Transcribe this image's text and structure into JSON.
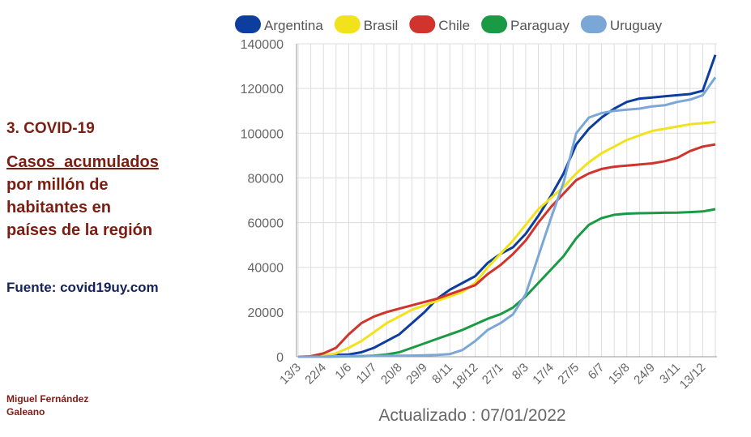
{
  "slide": {
    "section": "3. COVID-19",
    "title_lines": [
      "Casos  acumulados",
      "por millón de",
      "habitantes en",
      "países de la región"
    ],
    "source": "Fuente: covid19uy.com",
    "author": [
      "Miguel Fernández",
      "Galeano"
    ]
  },
  "chart_data": {
    "type": "line",
    "caption": "Actualizado : 07/01/2022",
    "categories": [
      "13/3",
      null,
      "22/4",
      null,
      "1/6",
      null,
      "11/7",
      null,
      "20/8",
      null,
      "29/9",
      null,
      "8/11",
      null,
      "18/12",
      null,
      "27/1",
      null,
      "8/3",
      null,
      "17/4",
      null,
      "27/5",
      null,
      "6/7",
      null,
      "15/8",
      null,
      "24/9",
      null,
      "3/11",
      null,
      "13/12",
      null
    ],
    "ylim": [
      0,
      140000
    ],
    "yticks": [
      0,
      20000,
      40000,
      60000,
      80000,
      100000,
      120000,
      140000
    ],
    "grid": true,
    "legend": "top",
    "series": [
      {
        "name": "Argentina",
        "color": "#0d3d9e",
        "values": [
          0,
          0,
          500,
          800,
          1000,
          2000,
          4000,
          7000,
          10000,
          15000,
          20000,
          26000,
          30000,
          33000,
          36000,
          42000,
          46000,
          49000,
          55000,
          63000,
          72000,
          82000,
          95000,
          102000,
          107000,
          111000,
          114000,
          115500,
          116000,
          116500,
          117000,
          117500,
          119000,
          135000
        ]
      },
      {
        "name": "Brasil",
        "color": "#f2e21b",
        "values": [
          0,
          0,
          500,
          1500,
          4000,
          7000,
          11000,
          15000,
          18000,
          21000,
          23000,
          25000,
          27000,
          29000,
          33000,
          40000,
          46000,
          52000,
          59000,
          66000,
          71000,
          76000,
          82000,
          87000,
          91000,
          94000,
          97000,
          99000,
          101000,
          102000,
          103000,
          104000,
          104500,
          105000
        ]
      },
      {
        "name": "Chile",
        "color": "#d0342c",
        "values": [
          0,
          200,
          1500,
          4000,
          10000,
          15000,
          18000,
          20000,
          21500,
          23000,
          24500,
          26000,
          28000,
          30000,
          32000,
          37000,
          41000,
          46000,
          52000,
          60000,
          67000,
          73000,
          79000,
          82000,
          84000,
          85000,
          85500,
          86000,
          86500,
          87500,
          89000,
          92000,
          94000,
          95000
        ]
      },
      {
        "name": "Paraguay",
        "color": "#1a9a45",
        "values": [
          0,
          0,
          0,
          100,
          200,
          300,
          500,
          1000,
          2000,
          4000,
          6000,
          8000,
          10000,
          12000,
          14500,
          17000,
          19000,
          22000,
          27000,
          33000,
          39000,
          45000,
          53000,
          59000,
          62000,
          63500,
          64000,
          64200,
          64300,
          64400,
          64500,
          64700,
          65000,
          66000
        ]
      },
      {
        "name": "Uruguay",
        "color": "#7ba7d7",
        "values": [
          0,
          0,
          0,
          200,
          250,
          300,
          350,
          400,
          450,
          500,
          600,
          800,
          1200,
          3000,
          7000,
          12000,
          15000,
          19000,
          28000,
          45000,
          62000,
          78000,
          100000,
          107000,
          109000,
          110000,
          110500,
          111000,
          112000,
          112500,
          114000,
          115000,
          117000,
          125000
        ]
      }
    ]
  }
}
